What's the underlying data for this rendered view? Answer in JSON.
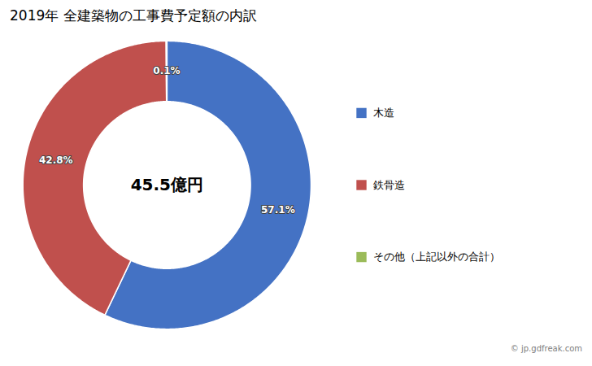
{
  "chart_data": {
    "type": "pie",
    "title": "2019年 全建築物の工事費予定額の内訳",
    "center_text": "45.5億円",
    "categories": [
      "木造",
      "鉄骨造",
      "その他（上記以外の合計）"
    ],
    "values": [
      57.1,
      42.8,
      0.1
    ],
    "value_labels": [
      "57.1%",
      "42.8%",
      "0.1%"
    ],
    "data_labels": true,
    "colors": [
      "#4472C4",
      "#C0504D",
      "#9BBB59"
    ],
    "legend": "right",
    "annotations": [
      "© jp.gdfreak.com"
    ]
  }
}
